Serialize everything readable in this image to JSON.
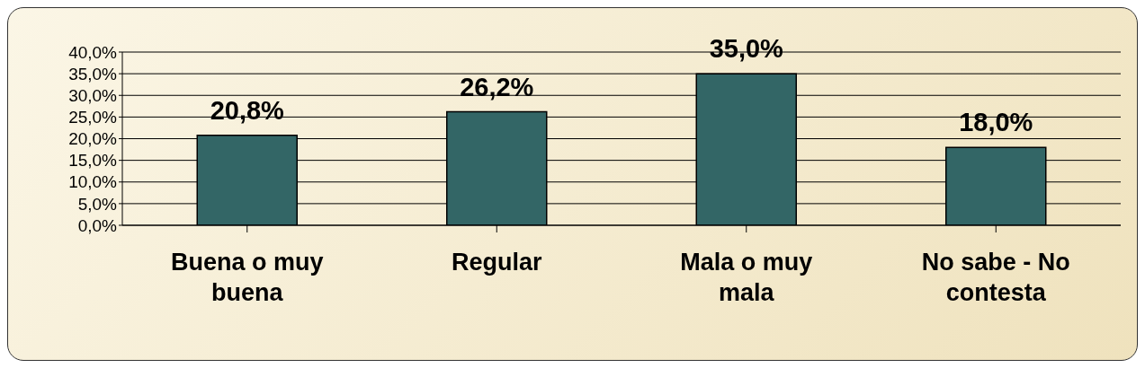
{
  "chart_data": {
    "type": "bar",
    "categories": [
      "Buena o muy buena",
      "Regular",
      "Mala o muy mala",
      "No sabe - No contesta"
    ],
    "values": [
      20.8,
      26.2,
      35.0,
      18.0
    ],
    "value_labels": [
      "20,8%",
      "26,2%",
      "35,0%",
      "18,0%"
    ],
    "color": "#336666",
    "ylim": [
      0,
      40
    ],
    "yticks": [
      {
        "value": 0,
        "label": "0,0%"
      },
      {
        "value": 5,
        "label": "5,0%"
      },
      {
        "value": 10,
        "label": "10,0%"
      },
      {
        "value": 15,
        "label": "15,0%"
      },
      {
        "value": 20,
        "label": "20,0%"
      },
      {
        "value": 25,
        "label": "25,0%"
      },
      {
        "value": 30,
        "label": "30,0%"
      },
      {
        "value": 35,
        "label": "35,0%"
      },
      {
        "value": 40,
        "label": "40,0%"
      }
    ],
    "grid": "y",
    "legend": false
  }
}
